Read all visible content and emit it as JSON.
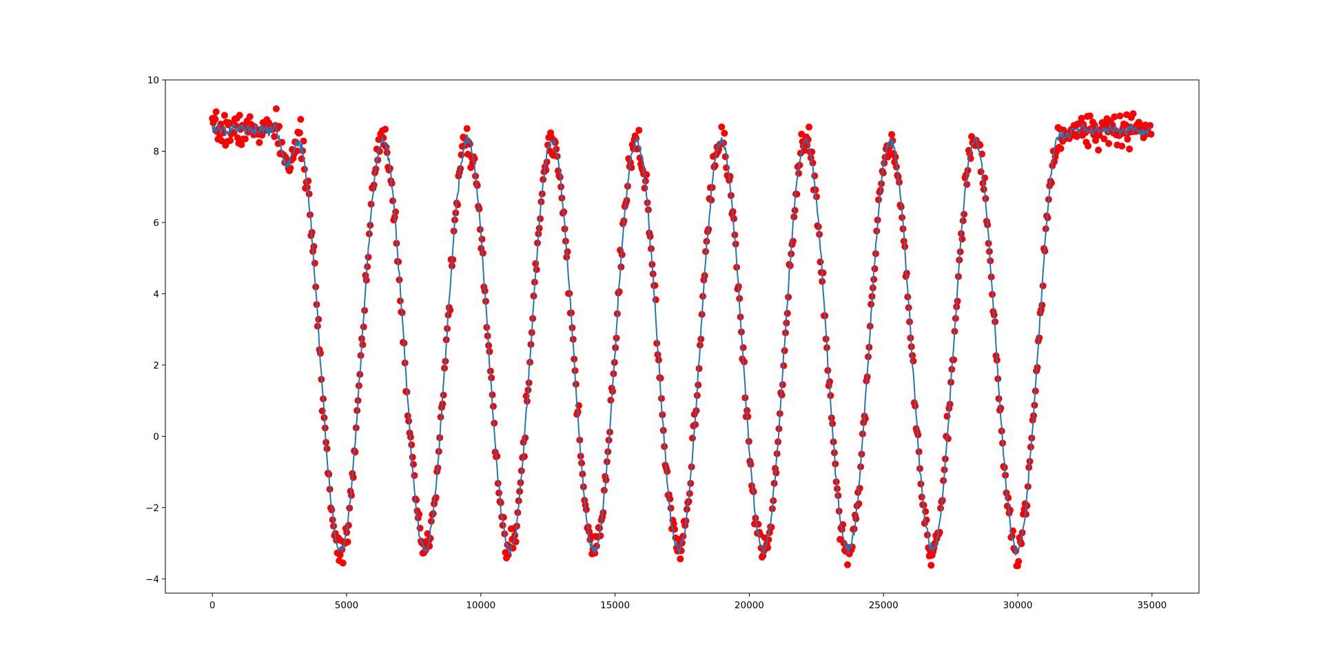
{
  "chart_data": {
    "type": "scatter",
    "title": "",
    "xlabel": "",
    "ylabel": "",
    "xlim": [
      -1750,
      36750
    ],
    "ylim": [
      -4.4,
      10.0
    ],
    "grid": false,
    "legend": "none",
    "x_ticks": [
      0,
      5000,
      10000,
      15000,
      20000,
      25000,
      30000,
      35000
    ],
    "x_tick_labels": [
      "0",
      "5000",
      "10000",
      "15000",
      "20000",
      "25000",
      "30000",
      "35000"
    ],
    "y_ticks": [
      -4,
      -2,
      0,
      2,
      4,
      6,
      8,
      10
    ],
    "y_tick_labels": [
      "−4",
      "−2",
      "0",
      "2",
      "4",
      "6",
      "8",
      "10"
    ],
    "series": [
      {
        "kind": "scatter",
        "color": "#ff0000",
        "marker": "circle",
        "x_start": 0,
        "x_step": 35,
        "count": 1000,
        "baseline_high": 8.6,
        "plateau_end": 2700,
        "plateau_resume": 32000,
        "oscillation": {
          "center": 2.55,
          "amplitude": 5.75,
          "period": 3150,
          "first_peak": 6350
        },
        "noise": 0.22,
        "seed": 7
      },
      {
        "kind": "line",
        "color": "#1f77b4",
        "x_start": 0,
        "x_step": 35,
        "count": 1000,
        "baseline_high": 8.6,
        "plateau_end": 2700,
        "plateau_resume": 32000,
        "oscillation": {
          "center": 2.55,
          "amplitude": 5.75,
          "period": 3150,
          "first_peak": 6350
        },
        "smoothing": 0.08
      }
    ]
  }
}
